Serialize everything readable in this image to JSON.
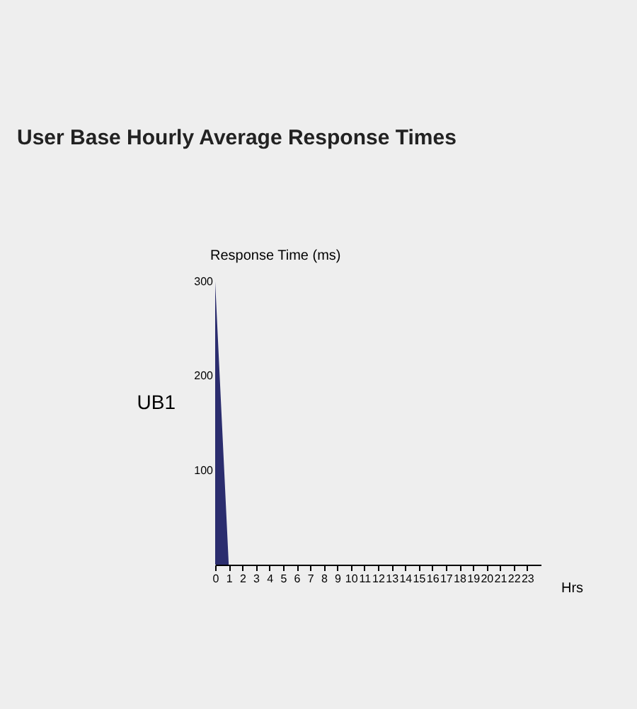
{
  "chart_data": {
    "type": "area",
    "title": "User Base Hourly Average Response Times",
    "xlabel": "Hrs",
    "ylabel": "Response Time (ms)",
    "x": [
      0,
      1,
      2,
      3,
      4,
      5,
      6,
      7,
      8,
      9,
      10,
      11,
      12,
      13,
      14,
      15,
      16,
      17,
      18,
      19,
      20,
      21,
      22,
      23
    ],
    "series": [
      {
        "name": "UB1",
        "color": "#2b2d6e",
        "values": [
          300,
          0,
          0,
          0,
          0,
          0,
          0,
          0,
          0,
          0,
          0,
          0,
          0,
          0,
          0,
          0,
          0,
          0,
          0,
          0,
          0,
          0,
          0,
          0
        ]
      }
    ],
    "xlim": [
      0,
      24
    ],
    "ylim": [
      0,
      300
    ],
    "xticks": [
      0,
      1,
      2,
      3,
      4,
      5,
      6,
      7,
      8,
      9,
      10,
      11,
      12,
      13,
      14,
      15,
      16,
      17,
      18,
      19,
      20,
      21,
      22,
      23
    ],
    "yticks": [
      100,
      200,
      300
    ],
    "grid": false
  }
}
